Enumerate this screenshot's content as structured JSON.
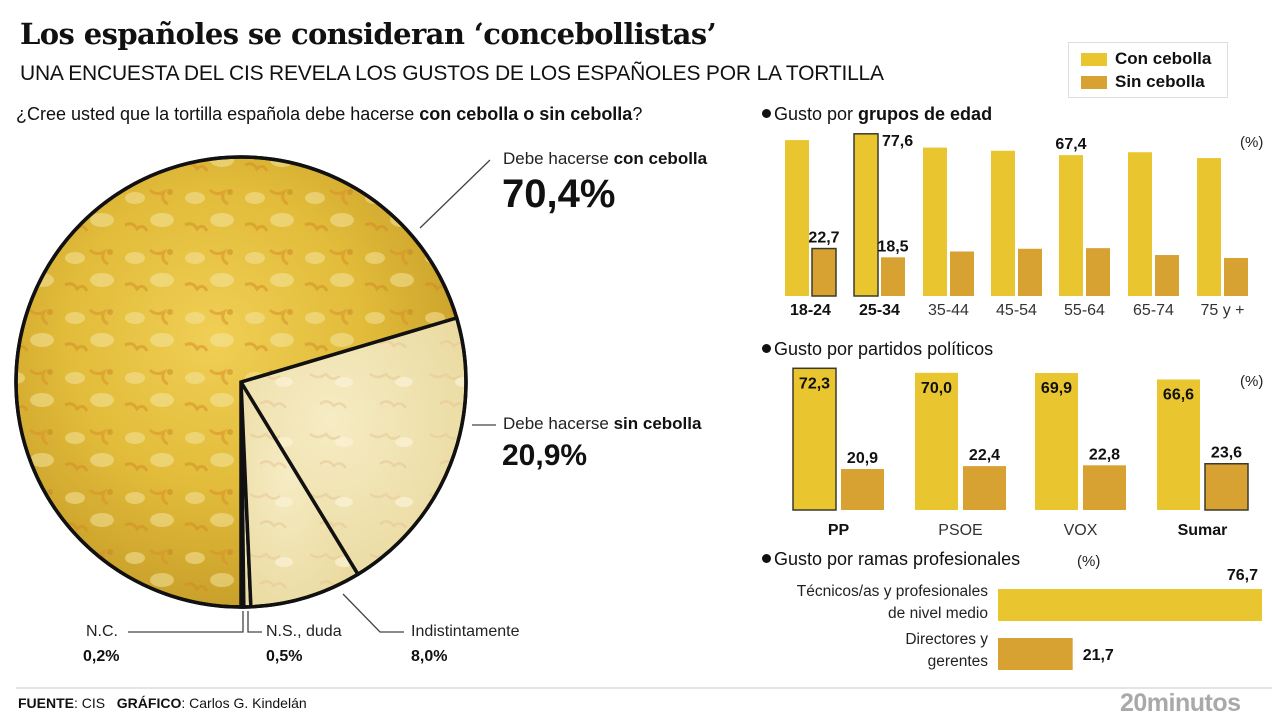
{
  "header": {
    "title": "Los españoles se consideran ‘concebollistas’",
    "subtitle": "UNA ENCUESTA DEL CIS REVELA LOS GUSTOS DE LOS ESPAÑOLES POR LA TORTILLA",
    "question_prefix": "¿Cree usted que la tortilla española debe hacerse ",
    "question_bold": "con cebolla o sin cebolla",
    "question_suffix": "?"
  },
  "colors": {
    "con_cebolla": "#E9C62F",
    "sin_cebolla": "#D8A233",
    "highlight_border": "#3a3a2a",
    "pie_main": "#D9B23A",
    "pie_light": "#F1E4B0"
  },
  "legend": {
    "items": [
      {
        "label": "Con cebolla",
        "color": "#E9C62F"
      },
      {
        "label": "Sin cebolla",
        "color": "#D8A233"
      }
    ]
  },
  "chart_data": [
    {
      "id": "pie",
      "type": "pie",
      "title": "¿Cree usted que la tortilla española debe hacerse con cebolla o sin cebolla?",
      "unit": "%",
      "slices": [
        {
          "key": "con",
          "label_prefix": "Debe hacerse ",
          "label_bold": "con cebolla",
          "value": 70.4,
          "display": "70,4%"
        },
        {
          "key": "sin",
          "label_prefix": "Debe hacerse ",
          "label_bold": "sin cebolla",
          "value": 20.9,
          "display": "20,9%"
        },
        {
          "key": "ind",
          "label": "Indistintamente",
          "value": 8.0,
          "display": "8,0%"
        },
        {
          "key": "ns",
          "label": "N.S., duda",
          "value": 0.5,
          "display": "0,5%"
        },
        {
          "key": "nc",
          "label": "N.C.",
          "value": 0.2,
          "display": "0,2%"
        }
      ]
    },
    {
      "id": "age",
      "type": "bar",
      "title_prefix": "Gusto por ",
      "title_bold": "grupos de edad",
      "unit_note": "(%)",
      "categories": [
        "18-24",
        "25-34",
        "35-44",
        "45-54",
        "55-64",
        "65-74",
        "75 y +"
      ],
      "bold_categories": [
        "18-24",
        "25-34"
      ],
      "ylim": [
        0,
        80
      ],
      "series": [
        {
          "name": "Con cebolla",
          "values": [
            74.6,
            77.6,
            71.0,
            69.5,
            67.4,
            68.8,
            66.0
          ],
          "labels": [
            null,
            "77,6",
            null,
            null,
            "67,4",
            null,
            null
          ],
          "highlight": [
            false,
            true,
            false,
            false,
            false,
            false,
            false
          ]
        },
        {
          "name": "Sin cebolla",
          "values": [
            22.7,
            18.5,
            21.3,
            22.6,
            22.9,
            19.6,
            18.2
          ],
          "labels": [
            "22,7",
            "18,5",
            null,
            null,
            null,
            null,
            null
          ],
          "highlight": [
            true,
            false,
            false,
            false,
            false,
            false,
            false
          ]
        }
      ]
    },
    {
      "id": "party",
      "type": "bar",
      "title": "Gusto por partidos políticos",
      "unit_note": "(%)",
      "categories": [
        "PP",
        "PSOE",
        "VOX",
        "Sumar"
      ],
      "bold_categories": [
        "PP",
        "Sumar"
      ],
      "ylim": [
        0,
        80
      ],
      "series": [
        {
          "name": "Con cebolla",
          "values": [
            72.3,
            70.0,
            69.9,
            66.6
          ],
          "labels": [
            "72,3",
            "70,0",
            "69,9",
            "66,6"
          ],
          "highlight": [
            true,
            false,
            false,
            false
          ]
        },
        {
          "name": "Sin cebolla",
          "values": [
            20.9,
            22.4,
            22.8,
            23.6
          ],
          "labels": [
            "20,9",
            "22,4",
            "22,8",
            "23,6"
          ],
          "highlight": [
            false,
            false,
            false,
            true
          ]
        }
      ]
    },
    {
      "id": "prof",
      "type": "bar",
      "orientation": "horizontal",
      "title": "Gusto por ramas profesionales",
      "unit_note": "(%)",
      "xlim": [
        0,
        76.7
      ],
      "rows": [
        {
          "label_lines": [
            "Técnicos/as y profesionales",
            "de nivel medio"
          ],
          "series": "Con cebolla",
          "value": 76.7,
          "display": "76,7"
        },
        {
          "label_lines": [
            "Directores y",
            "gerentes"
          ],
          "series": "Sin cebolla",
          "value": 21.7,
          "display": "21,7"
        }
      ]
    }
  ],
  "footer": {
    "source_label": "FUENTE",
    "source_value": ": CIS",
    "graphic_label": "GRÁFICO",
    "graphic_value": ": Carlos G. Kindelán",
    "brand": "20minutos"
  }
}
